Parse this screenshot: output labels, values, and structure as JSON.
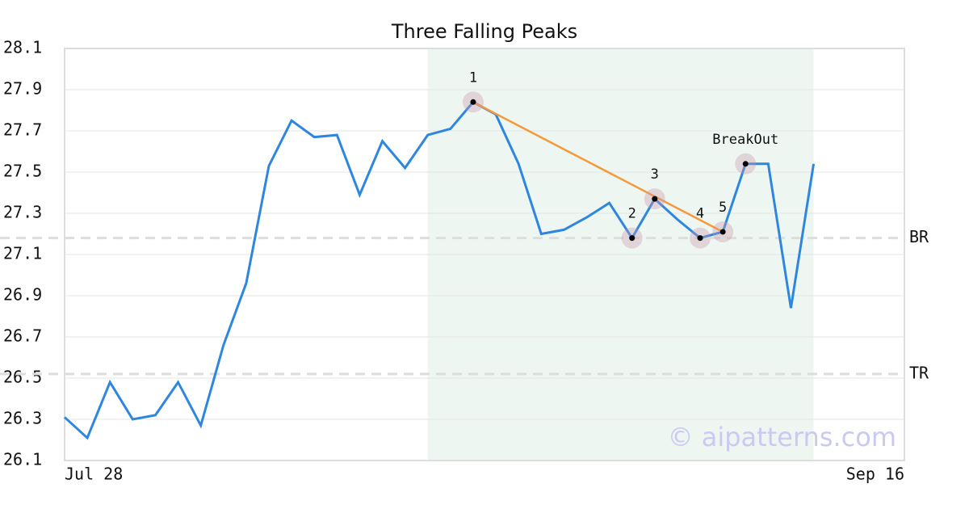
{
  "chart_data": {
    "type": "line",
    "title": "Three Falling Peaks",
    "x": [
      0,
      1,
      2,
      3,
      4,
      5,
      6,
      7,
      8,
      9,
      10,
      11,
      12,
      13,
      14,
      15,
      16,
      17,
      18,
      19,
      20,
      21,
      22,
      23,
      24,
      25,
      26,
      27,
      28,
      29,
      30,
      31,
      32,
      33
    ],
    "series": [
      {
        "color": "#2e86de",
        "values": [
          26.31,
          26.21,
          26.48,
          26.3,
          26.32,
          26.48,
          26.27,
          26.66,
          26.96,
          27.53,
          27.75,
          27.67,
          27.68,
          27.39,
          27.65,
          27.52,
          27.68,
          27.71,
          27.84,
          27.78,
          27.54,
          27.2,
          27.22,
          27.28,
          27.35,
          27.18,
          27.37,
          27.27,
          27.18,
          27.21,
          27.54,
          27.54,
          26.84,
          27.54
        ]
      }
    ],
    "xlim": [
      0,
      37
    ],
    "xticks": [
      {
        "value": 0,
        "label": "Jul 28"
      },
      {
        "value": 37,
        "label": "Sep 16"
      }
    ],
    "ylim": [
      26.1,
      28.1
    ],
    "yticks": [
      26.1,
      26.3,
      26.5,
      26.7,
      26.9,
      27.1,
      27.3,
      27.5,
      27.7,
      27.9,
      28.1
    ],
    "grid": true,
    "shaded_x": [
      16,
      33
    ],
    "shade_color": "#eef6f2",
    "levels": [
      {
        "name": "BR",
        "value": 27.18
      },
      {
        "name": "TR",
        "value": 26.52
      }
    ],
    "markers": [
      {
        "label": "1",
        "x": 18,
        "value": 27.84
      },
      {
        "label": "2",
        "x": 25,
        "value": 27.18
      },
      {
        "label": "3",
        "x": 26,
        "value": 27.37
      },
      {
        "label": "4",
        "x": 28,
        "value": 27.18
      },
      {
        "label": "5",
        "x": 29,
        "value": 27.21
      },
      {
        "label": "BreakOut",
        "x": 30,
        "value": 27.54
      }
    ],
    "trend_color": "#f59a3c",
    "watermark": "© aipatterns.com"
  }
}
